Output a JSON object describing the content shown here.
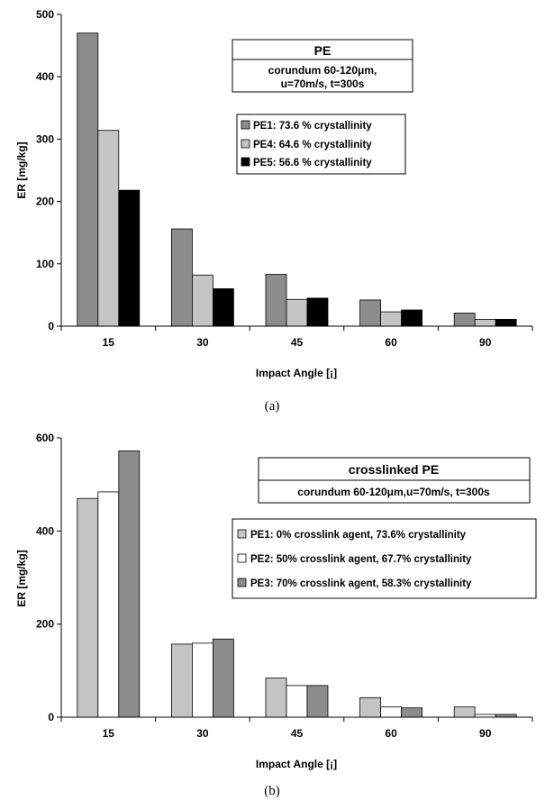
{
  "chart_data": [
    {
      "type": "bar",
      "caption": "(a)",
      "title": "PE",
      "subtitle_lines": [
        "corundum 60-120μm,",
        "u=70m/s, t=300s"
      ],
      "xlabel": "Impact Angle [¡]",
      "ylabel": "ER [mg/kg]",
      "ylim": [
        0,
        500
      ],
      "yticks": [
        0,
        100,
        200,
        300,
        400,
        500
      ],
      "categories": [
        "15",
        "30",
        "45",
        "60",
        "90"
      ],
      "series": [
        {
          "name": "PE1: 73.6 % crystallinity",
          "color": "#8c8c8c",
          "values": [
            470,
            156,
            83,
            42,
            21
          ]
        },
        {
          "name": "PE4: 64.6 % crystallinity",
          "color": "#c4c4c4",
          "values": [
            314,
            82,
            43,
            23,
            11
          ]
        },
        {
          "name": "PE5: 56.6 % crystallinity",
          "color": "#000000",
          "values": [
            218,
            60,
            45,
            26,
            11
          ]
        }
      ],
      "grid": false,
      "legend": "right"
    },
    {
      "type": "bar",
      "caption": "(b)",
      "title": "crosslinked PE",
      "subtitle_lines": [
        "corundum 60-120μm,u=70m/s, t=300s"
      ],
      "xlabel": "Impact Angle [¡]",
      "ylabel": "ER [mg/kg]",
      "ylim": [
        0,
        600
      ],
      "yticks": [
        0,
        200,
        400,
        600
      ],
      "categories": [
        "15",
        "30",
        "45",
        "60",
        "90"
      ],
      "series": [
        {
          "name": "PE1: 0% crosslink agent, 73.6% crystallinity",
          "color": "#c4c4c4",
          "values": [
            470,
            157,
            84,
            42,
            22
          ]
        },
        {
          "name": "PE2: 50% crosslink agent, 67.7% crystallinity",
          "color": "#ffffff",
          "values": [
            484,
            159,
            68,
            22,
            6
          ]
        },
        {
          "name": "PE3: 70% crosslink agent, 58.3% crystallinity",
          "color": "#8c8c8c",
          "values": [
            572,
            168,
            68,
            20,
            6
          ]
        }
      ],
      "grid": false,
      "legend": "right"
    }
  ]
}
